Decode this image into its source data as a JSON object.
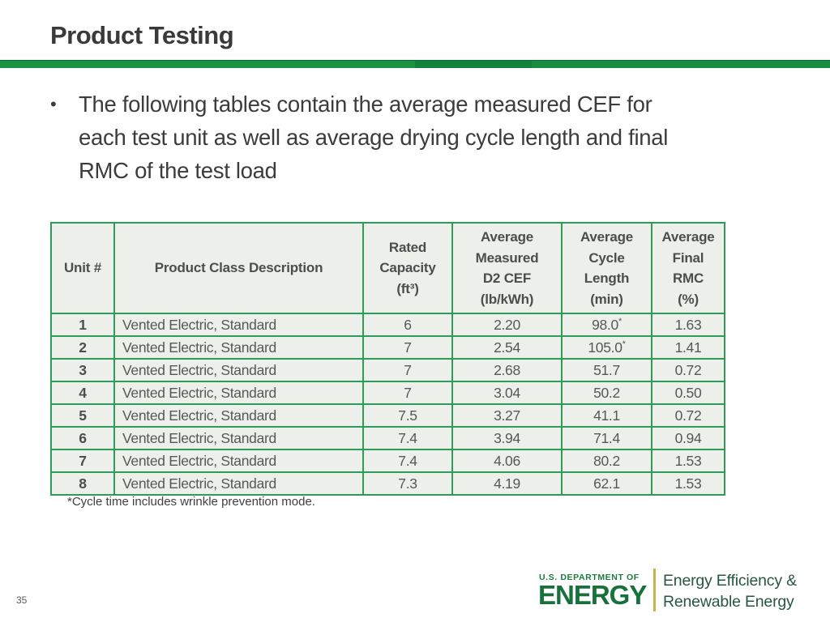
{
  "slide": {
    "title": "Product Testing",
    "bullet_marker": "•",
    "bullet_text": "The following tables contain the average measured CEF for\neach test unit as well as average drying cycle length and final\nRMC of the test load",
    "footnote": "*Cycle time includes wrinkle prevention mode.",
    "page_number": "35"
  },
  "table": {
    "headers": [
      "Unit #",
      "Product Class Description",
      "Rated\nCapacity\n(ft³)",
      "Average\nMeasured\nD2 CEF\n(lb/kWh)",
      "Average\nCycle\nLength\n(min)",
      "Average\nFinal\nRMC\n(%)"
    ],
    "rows": [
      {
        "unit": "1",
        "desc": "Vented Electric, Standard",
        "capacity": "6",
        "cef": "2.20",
        "cycle": "98.0",
        "cycle_sup": "*",
        "rmc": "1.63"
      },
      {
        "unit": "2",
        "desc": "Vented Electric, Standard",
        "capacity": "7",
        "cef": "2.54",
        "cycle": "105.0",
        "cycle_sup": "*",
        "rmc": "1.41"
      },
      {
        "unit": "3",
        "desc": "Vented Electric, Standard",
        "capacity": "7",
        "cef": "2.68",
        "cycle": "51.7",
        "cycle_sup": "",
        "rmc": "0.72"
      },
      {
        "unit": "4",
        "desc": "Vented Electric, Standard",
        "capacity": "7",
        "cef": "3.04",
        "cycle": "50.2",
        "cycle_sup": "",
        "rmc": "0.50"
      },
      {
        "unit": "5",
        "desc": "Vented Electric, Standard",
        "capacity": "7.5",
        "cef": "3.27",
        "cycle": "41.1",
        "cycle_sup": "",
        "rmc": "0.72"
      },
      {
        "unit": "6",
        "desc": "Vented Electric, Standard",
        "capacity": "7.4",
        "cef": "3.94",
        "cycle": "71.4",
        "cycle_sup": "",
        "rmc": "0.94"
      },
      {
        "unit": "7",
        "desc": "Vented Electric, Standard",
        "capacity": "7.4",
        "cef": "4.06",
        "cycle": "80.2",
        "cycle_sup": "",
        "rmc": "1.53"
      },
      {
        "unit": "8",
        "desc": "Vented Electric, Standard",
        "capacity": "7.3",
        "cef": "4.19",
        "cycle": "62.1",
        "cycle_sup": "",
        "rmc": "1.53"
      }
    ]
  },
  "footer": {
    "department_label": "U.S. DEPARTMENT OF",
    "department_name": "ENERGY",
    "office_name": "Energy Efficiency &\nRenewable Energy"
  },
  "colors": {
    "accent_green": "#1a9143",
    "accent_green_dark": "#12823a",
    "table_border_green": "#2f9b58",
    "cell_background": "#edf0ea",
    "body_text": "#3c3c3c",
    "table_text": "#575757",
    "doe_green": "#17713a",
    "office_green": "#27573f",
    "gold_divider": "#c8b44b"
  }
}
